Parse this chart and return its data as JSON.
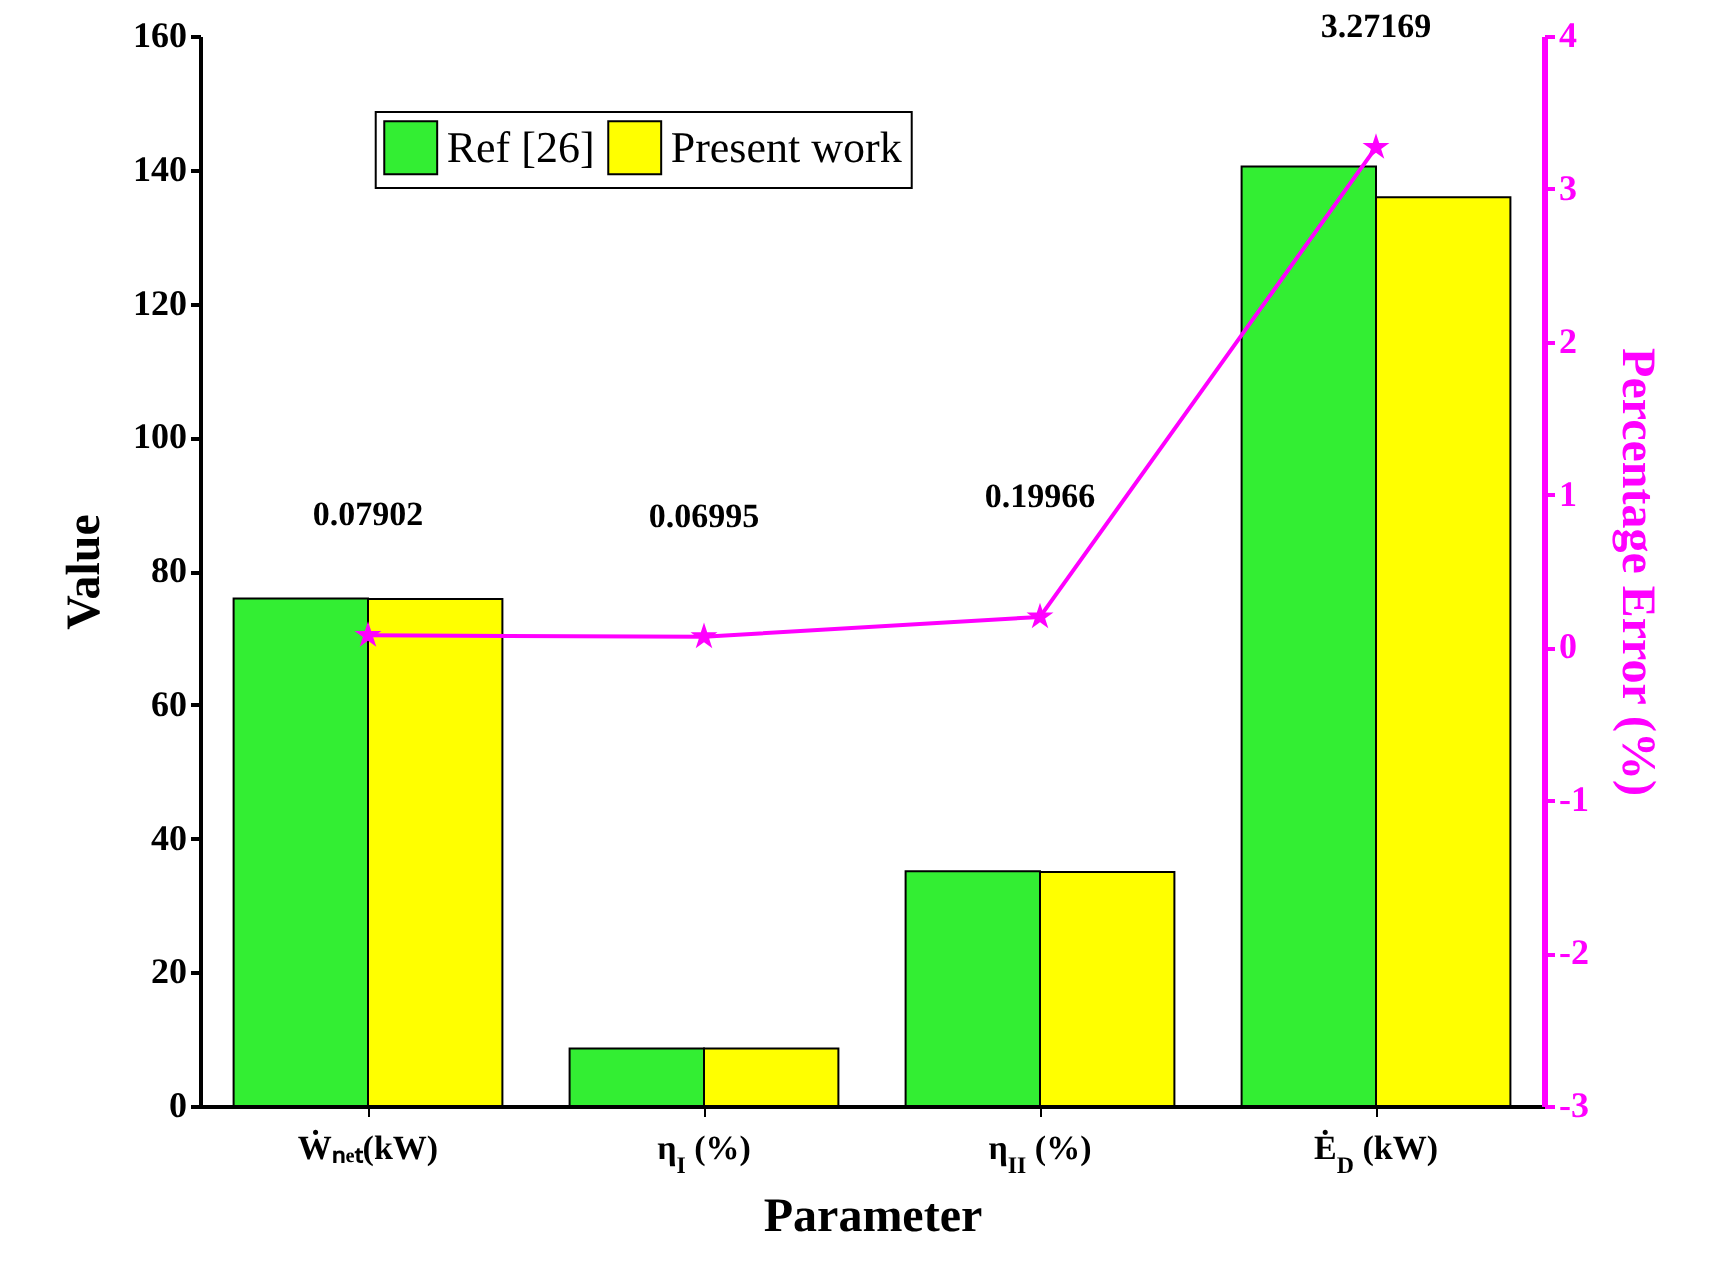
{
  "chart_data": {
    "type": "bar",
    "xlabel": "Parameter",
    "ylabel": "Value",
    "y2label": "Percentage Error (%)",
    "categories": [
      "Ẇₙₑₜ(kW)",
      "η$_{I}$ (%)",
      "η$_{II}$ (%)",
      "Ė$_{D}$ (kW)"
    ],
    "series": [
      {
        "name": "Ref [26]",
        "color": "#33ee33",
        "values": [
          75.9,
          8.6,
          35.1,
          140.5
        ]
      },
      {
        "name": "Present work",
        "color": "#ffff00",
        "values": [
          75.8,
          8.6,
          35.0,
          135.9
        ]
      },
      {
        "type": "line",
        "axis": "y2",
        "color": "#ff00ff",
        "marker": "star",
        "values": [
          0.07902,
          0.06995,
          0.19966,
          3.27169
        ],
        "value_labels": [
          "0.07902",
          "0.06995",
          "0.19966",
          "3.27169"
        ]
      }
    ],
    "ylim": [
      0,
      160
    ],
    "yticks": [
      0,
      20,
      40,
      60,
      80,
      100,
      120,
      140,
      160
    ],
    "y2lim": [
      -3,
      4
    ],
    "y2ticks": [
      -3,
      -2,
      -1,
      0,
      1,
      2,
      3,
      4
    ],
    "grid": false,
    "legend": "top"
  }
}
